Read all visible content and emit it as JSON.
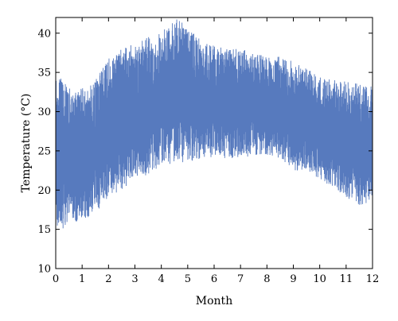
{
  "chart_data": {
    "type": "line",
    "title": "",
    "xlabel": "Month",
    "ylabel": "Temperature (°C)",
    "xlim": [
      0,
      12
    ],
    "ylim": [
      10,
      42
    ],
    "x_ticks": [
      0,
      1,
      2,
      3,
      4,
      5,
      6,
      7,
      8,
      9,
      10,
      11,
      12
    ],
    "y_ticks": [
      10,
      15,
      20,
      25,
      30,
      35,
      40
    ],
    "grid": false,
    "legend": "none",
    "colors": {
      "series": "#3a63b3",
      "axes": "#000000",
      "background": "#ffffff"
    },
    "series": [
      {
        "x": [
          0,
          0.5,
          1,
          1.5,
          2,
          2.5,
          3,
          3.5,
          4,
          4.5,
          5,
          5.5,
          6,
          6.5,
          7,
          7.5,
          8,
          8.5,
          9,
          9.5,
          10,
          10.5,
          11,
          11.5,
          12
        ],
        "y_min": [
          14,
          16,
          16,
          17,
          19,
          20,
          21,
          22,
          23,
          23.5,
          23.5,
          24,
          24,
          24,
          24,
          24.5,
          24.5,
          24,
          22.5,
          22.5,
          21,
          20.5,
          19,
          18,
          18.5
        ],
        "y_max": [
          35,
          33,
          33,
          34,
          37,
          38,
          39,
          39.5,
          40,
          42,
          41,
          39,
          38.5,
          38,
          38,
          37.5,
          37,
          37,
          36.5,
          35.5,
          34.5,
          34,
          34,
          33.5,
          33.5
        ]
      }
    ]
  }
}
